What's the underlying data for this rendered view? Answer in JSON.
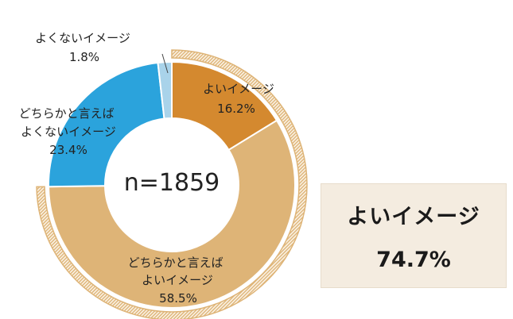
{
  "chart_data": {
    "type": "pie",
    "style": "donut",
    "n_label": "n=1859",
    "slices": [
      {
        "label": "よいイメージ",
        "value": 16.2,
        "value_label": "16.2%",
        "color": "#d4892f"
      },
      {
        "label": "どちらかと言えば\nよいイメージ",
        "value": 58.5,
        "value_label": "58.5%",
        "color": "#deb477"
      },
      {
        "label": "どちらかと言えば\nよくないイメージ",
        "value": 23.4,
        "value_label": "23.4%",
        "color": "#2ba3dc"
      },
      {
        "label": "よくないイメージ",
        "value": 1.8,
        "value_label": "1.8%",
        "color": "#a9d3ea"
      }
    ],
    "summary": {
      "label": "よいイメージ",
      "value": "74.7%"
    },
    "highlight_ring_color": "#deb477"
  }
}
